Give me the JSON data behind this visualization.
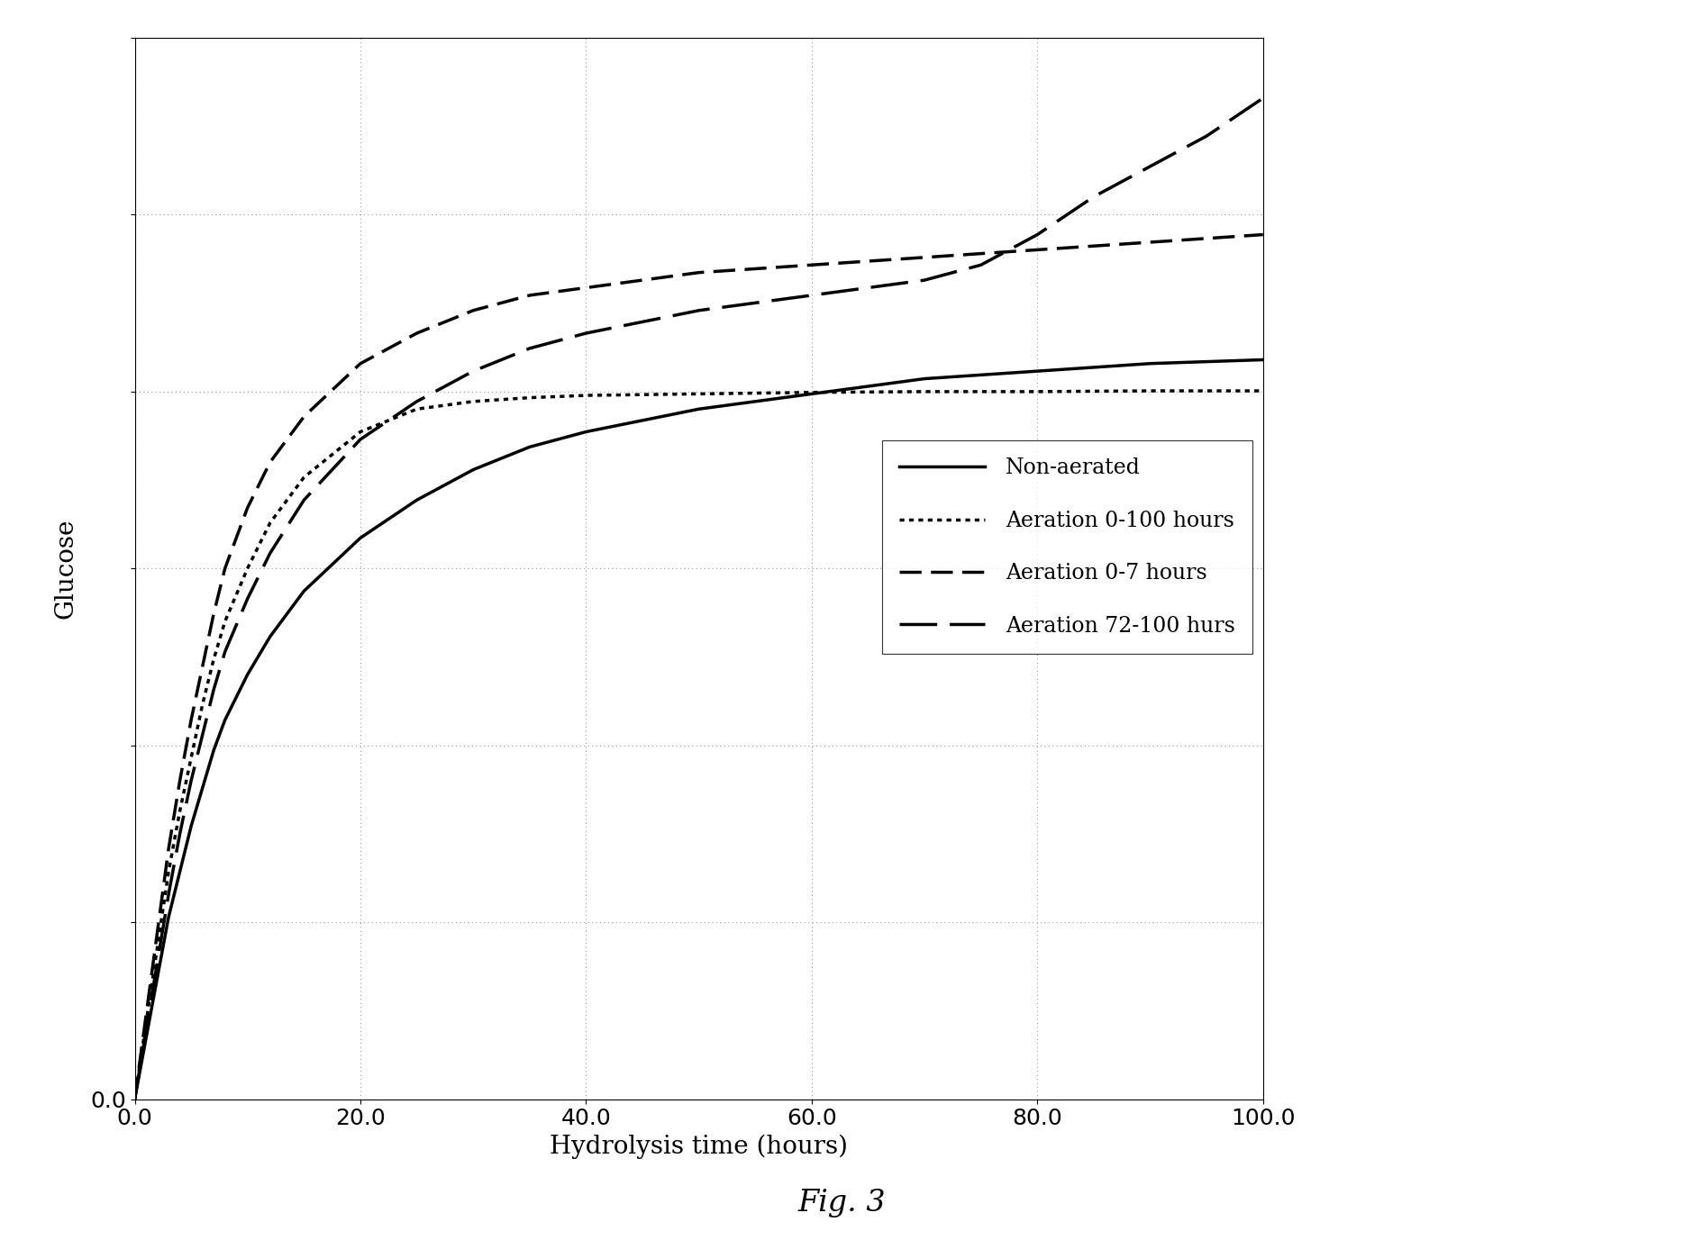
{
  "xlabel": "Hydrolysis time (hours)",
  "ylabel": "Glucose",
  "fig_caption": "Fig. 3",
  "xlim": [
    0.0,
    100.0
  ],
  "xticks": [
    0.0,
    20.0,
    40.0,
    60.0,
    80.0,
    100.0
  ],
  "ytick_bottom_label": "0.0",
  "n_yticks": 7,
  "y_max": 1.4,
  "grid_color": "#999999",
  "background_color": "#ffffff",
  "series": {
    "non_aerated": {
      "x": [
        0,
        1,
        2,
        3,
        4,
        5,
        6,
        7,
        8,
        10,
        12,
        15,
        20,
        25,
        30,
        35,
        40,
        50,
        60,
        70,
        80,
        90,
        100
      ],
      "y": [
        0.0,
        0.08,
        0.16,
        0.24,
        0.3,
        0.36,
        0.41,
        0.46,
        0.5,
        0.56,
        0.61,
        0.67,
        0.74,
        0.79,
        0.83,
        0.86,
        0.88,
        0.91,
        0.93,
        0.95,
        0.96,
        0.97,
        0.975
      ]
    },
    "aeration_0_100": {
      "x": [
        0,
        1,
        2,
        3,
        4,
        5,
        6,
        7,
        8,
        10,
        12,
        15,
        20,
        25,
        30,
        35,
        40,
        50,
        60,
        70,
        80,
        90,
        100
      ],
      "y": [
        0.0,
        0.1,
        0.2,
        0.3,
        0.38,
        0.45,
        0.52,
        0.58,
        0.63,
        0.7,
        0.76,
        0.82,
        0.88,
        0.91,
        0.92,
        0.925,
        0.928,
        0.93,
        0.932,
        0.933,
        0.933,
        0.934,
        0.934
      ]
    },
    "aeration_0_7": {
      "x": [
        0,
        1,
        2,
        3,
        4,
        5,
        6,
        7,
        8,
        10,
        12,
        15,
        20,
        25,
        30,
        35,
        40,
        50,
        60,
        70,
        80,
        90,
        100
      ],
      "y": [
        0.0,
        0.11,
        0.22,
        0.33,
        0.42,
        0.5,
        0.57,
        0.64,
        0.7,
        0.78,
        0.84,
        0.9,
        0.97,
        1.01,
        1.04,
        1.06,
        1.07,
        1.09,
        1.1,
        1.11,
        1.12,
        1.13,
        1.14
      ]
    },
    "aeration_72_100": {
      "x": [
        0,
        1,
        2,
        3,
        4,
        5,
        6,
        7,
        8,
        10,
        12,
        15,
        20,
        25,
        30,
        35,
        40,
        50,
        60,
        70,
        75,
        80,
        85,
        90,
        95,
        100
      ],
      "y": [
        0.0,
        0.09,
        0.18,
        0.27,
        0.35,
        0.42,
        0.48,
        0.54,
        0.59,
        0.66,
        0.72,
        0.79,
        0.87,
        0.92,
        0.96,
        0.99,
        1.01,
        1.04,
        1.06,
        1.08,
        1.1,
        1.14,
        1.19,
        1.23,
        1.27,
        1.32
      ]
    }
  }
}
